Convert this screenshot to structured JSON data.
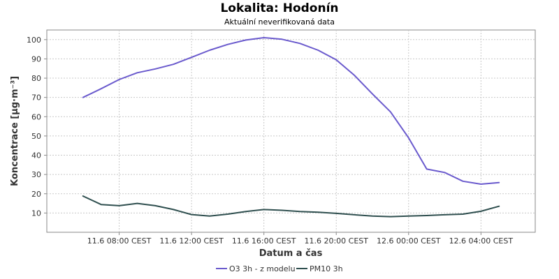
{
  "chart_data": {
    "type": "line",
    "title": "Lokalita: Hodonín",
    "subtitle": "Aktuální neverifikovaná data",
    "xlabel": "Datum a čas",
    "ylabel": "Koncentrace [µg·m⁻³]",
    "ylim": [
      0,
      105
    ],
    "y_ticks": [
      10,
      20,
      30,
      40,
      50,
      60,
      70,
      80,
      90,
      100
    ],
    "x_range_hours": [
      4,
      31
    ],
    "x_ticks": [
      {
        "hour": 8,
        "label": "11.6 08:00 CEST"
      },
      {
        "hour": 12,
        "label": "11.6 12:00 CEST"
      },
      {
        "hour": 16,
        "label": "11.6 16:00 CEST"
      },
      {
        "hour": 20,
        "label": "11.6 20:00 CEST"
      },
      {
        "hour": 24,
        "label": "12.6 00:00 CEST"
      },
      {
        "hour": 28,
        "label": "12.6 04:00 CEST"
      }
    ],
    "x": [
      6,
      7,
      8,
      9,
      10,
      11,
      12,
      13,
      14,
      15,
      16,
      17,
      18,
      19,
      20,
      21,
      22,
      23,
      24,
      25,
      26,
      27,
      28,
      29,
      30
    ],
    "grid": true,
    "legend": "bottom",
    "series": [
      {
        "name": "O3 3h - z modelu",
        "color": "#6a5acd",
        "values": [
          70,
          74.5,
          79.3,
          82.8,
          84.8,
          87.2,
          90.8,
          94.5,
          97.5,
          99.8,
          101,
          100.2,
          98,
          94.5,
          89.5,
          81.5,
          71.8,
          62.5,
          49,
          32.8,
          31,
          26.5,
          25,
          25.8,
          null
        ]
      },
      {
        "name": "PM10 3h",
        "color": "#2f4f4f",
        "values": [
          18.8,
          14.4,
          13.8,
          15,
          13.8,
          11.8,
          9.2,
          8.4,
          9.4,
          10.8,
          11.8,
          11.4,
          10.8,
          10.4,
          9.8,
          9.1,
          8.4,
          8.1,
          8.4,
          8.7,
          9.1,
          9.4,
          10.9,
          13.5,
          null
        ]
      }
    ]
  }
}
